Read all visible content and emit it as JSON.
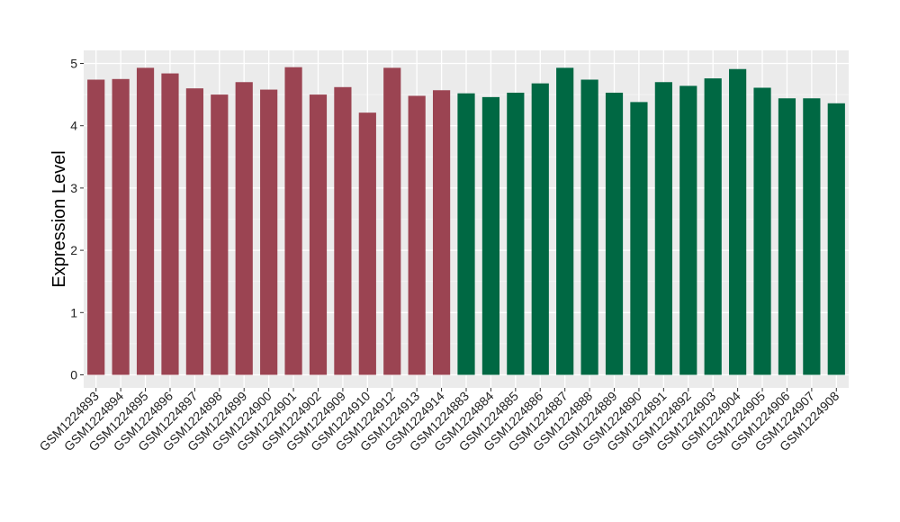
{
  "chart_data": {
    "type": "bar",
    "title": "",
    "xlabel": "",
    "ylabel": "Expression Level",
    "ylim": [
      0,
      5.1
    ],
    "yticks": [
      0,
      1,
      2,
      3,
      4,
      5
    ],
    "grid": true,
    "legend": "none",
    "colors": {
      "group1": "#9b4452",
      "group2": "#006843",
      "panel": "#ebebeb",
      "grid": "#ffffff"
    },
    "categories": [
      "GSM1224893",
      "GSM1224894",
      "GSM1224895",
      "GSM1224896",
      "GSM1224897",
      "GSM1224898",
      "GSM1224899",
      "GSM1224900",
      "GSM1224901",
      "GSM1224902",
      "GSM1224909",
      "GSM1224910",
      "GSM1224912",
      "GSM1224913",
      "GSM1224914",
      "GSM1224883",
      "GSM1224884",
      "GSM1224885",
      "GSM1224886",
      "GSM1224887",
      "GSM1224888",
      "GSM1224889",
      "GSM1224890",
      "GSM1224891",
      "GSM1224892",
      "GSM1224903",
      "GSM1224904",
      "GSM1224905",
      "GSM1224906",
      "GSM1224907",
      "GSM1224908"
    ],
    "values": [
      4.74,
      4.75,
      4.93,
      4.84,
      4.6,
      4.5,
      4.7,
      4.58,
      4.94,
      4.5,
      4.62,
      4.21,
      4.93,
      4.48,
      4.57,
      4.52,
      4.46,
      4.53,
      4.68,
      4.93,
      4.74,
      4.53,
      4.38,
      4.7,
      4.64,
      4.76,
      4.91,
      4.61,
      4.44,
      4.44,
      4.36
    ],
    "groups": [
      "group1",
      "group1",
      "group1",
      "group1",
      "group1",
      "group1",
      "group1",
      "group1",
      "group1",
      "group1",
      "group1",
      "group1",
      "group1",
      "group1",
      "group1",
      "group2",
      "group2",
      "group2",
      "group2",
      "group2",
      "group2",
      "group2",
      "group2",
      "group2",
      "group2",
      "group2",
      "group2",
      "group2",
      "group2",
      "group2",
      "group2"
    ]
  }
}
